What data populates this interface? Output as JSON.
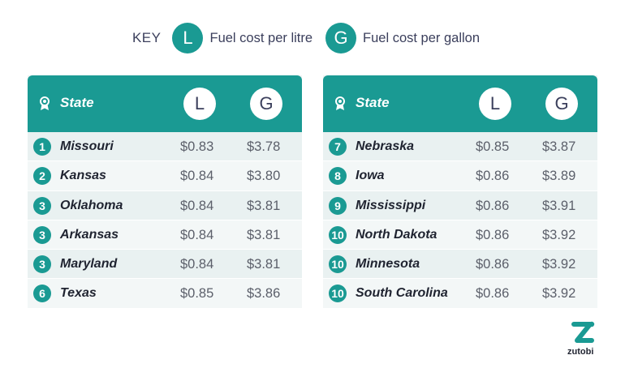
{
  "key": {
    "label": "KEY",
    "litre_letter": "L",
    "litre_text": "Fuel cost per litre",
    "gallon_letter": "G",
    "gallon_text": "Fuel cost per gallon"
  },
  "header": {
    "state": "State",
    "l": "L",
    "g": "G"
  },
  "colors": {
    "accent": "#1a9a93",
    "text": "#3b3f5c"
  },
  "icons": {
    "header_icon": "award-ribbon-icon",
    "logo": "zutobi-logo"
  },
  "left_table": [
    {
      "rank": "1",
      "state": "Missouri",
      "litre": "$0.83",
      "gallon": "$3.78"
    },
    {
      "rank": "2",
      "state": "Kansas",
      "litre": "$0.84",
      "gallon": "$3.80"
    },
    {
      "rank": "3",
      "state": "Oklahoma",
      "litre": "$0.84",
      "gallon": "$3.81"
    },
    {
      "rank": "3",
      "state": "Arkansas",
      "litre": "$0.84",
      "gallon": "$3.81"
    },
    {
      "rank": "3",
      "state": "Maryland",
      "litre": "$0.84",
      "gallon": "$3.81"
    },
    {
      "rank": "6",
      "state": "Texas",
      "litre": "$0.85",
      "gallon": "$3.86"
    }
  ],
  "right_table": [
    {
      "rank": "7",
      "state": "Nebraska",
      "litre": "$0.85",
      "gallon": "$3.87"
    },
    {
      "rank": "8",
      "state": "Iowa",
      "litre": "$0.86",
      "gallon": "$3.89"
    },
    {
      "rank": "9",
      "state": "Mississippi",
      "litre": "$0.86",
      "gallon": "$3.91"
    },
    {
      "rank": "10",
      "state": "North Dakota",
      "litre": "$0.86",
      "gallon": "$3.92"
    },
    {
      "rank": "10",
      "state": "Minnesota",
      "litre": "$0.86",
      "gallon": "$3.92"
    },
    {
      "rank": "10",
      "state": "South Carolina",
      "litre": "$0.86",
      "gallon": "$3.92"
    }
  ],
  "brand": {
    "name": "zutobi"
  }
}
